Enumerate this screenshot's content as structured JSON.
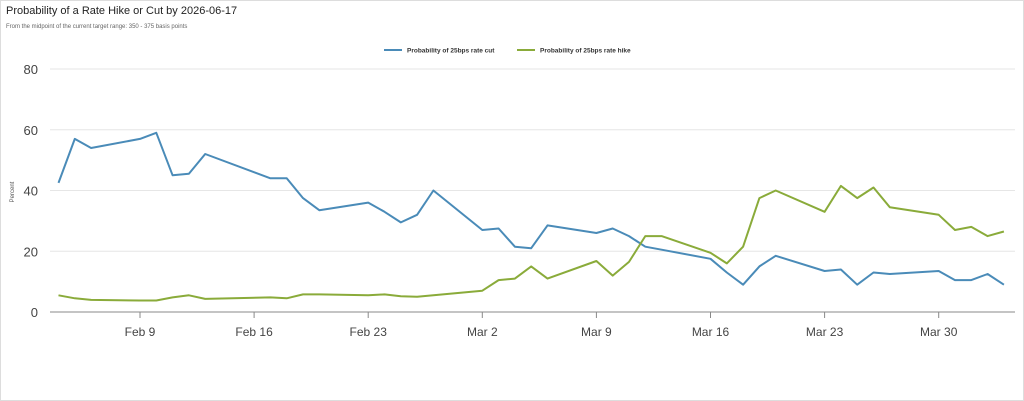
{
  "chart_data": {
    "type": "line",
    "title": "Probability of a Rate Hike or Cut by 2026-06-17",
    "subtitle": "From the midpoint of the current target range: 350 - 375 basis points",
    "xlabel": "",
    "ylabel": "Percent",
    "ylim": [
      0,
      80
    ],
    "yticks": [
      "0",
      "20",
      "40",
      "60",
      "80"
    ],
    "xticks": [
      "Feb 9",
      "Feb 16",
      "Feb 23",
      "Mar 2",
      "Mar 9",
      "Mar 16",
      "Mar 23",
      "Mar 30"
    ],
    "legend_position": "top-center",
    "grid": true,
    "x": [
      "Feb 4",
      "Feb 5",
      "Feb 6",
      "Feb 9",
      "Feb 10",
      "Feb 11",
      "Feb 12",
      "Feb 13",
      "Feb 17",
      "Feb 18",
      "Feb 19",
      "Feb 20",
      "Feb 23",
      "Feb 24",
      "Feb 25",
      "Feb 26",
      "Feb 27",
      "Mar 2",
      "Mar 3",
      "Mar 4",
      "Mar 5",
      "Mar 6",
      "Mar 9",
      "Mar 10",
      "Mar 11",
      "Mar 12",
      "Mar 13",
      "Mar 16",
      "Mar 17",
      "Mar 18",
      "Mar 19",
      "Mar 20",
      "Mar 23",
      "Mar 24",
      "Mar 25",
      "Mar 26",
      "Mar 27",
      "Mar 30",
      "Mar 31",
      "Apr 1",
      "Apr 2",
      "Apr 3"
    ],
    "x_day_offset_from_feb9": [
      -5,
      -4,
      -3,
      0,
      1,
      2,
      3,
      4,
      8,
      9,
      10,
      11,
      14,
      15,
      16,
      17,
      18,
      21,
      22,
      23,
      24,
      25,
      28,
      29,
      30,
      31,
      32,
      35,
      36,
      37,
      38,
      39,
      42,
      43,
      44,
      45,
      46,
      49,
      50,
      51,
      52,
      53
    ],
    "series": [
      {
        "name": "Probability of 25bps rate cut",
        "color": "#4a8bb8",
        "values": [
          42.5,
          57,
          54,
          57,
          59,
          45,
          45.5,
          52,
          44,
          44,
          37.5,
          33.5,
          36,
          33,
          29.5,
          32,
          40,
          27,
          27.5,
          21.5,
          21,
          28.5,
          26,
          27.5,
          25,
          21.5,
          20.5,
          17.5,
          13,
          9,
          15,
          18.5,
          13.5,
          14,
          9,
          13,
          12.5,
          13.5,
          10.5,
          10.5,
          12.5,
          9
        ]
      },
      {
        "name": "Probability of 25bps rate hike",
        "color": "#8aab3a",
        "values": [
          5.5,
          4.5,
          4,
          3.8,
          3.8,
          4.8,
          5.5,
          4.3,
          4.8,
          4.5,
          5.8,
          5.8,
          5.5,
          5.8,
          5.2,
          5,
          5.5,
          7,
          10.5,
          11,
          15,
          11,
          16.8,
          12,
          16.5,
          25,
          25,
          19.5,
          16,
          21.5,
          37.5,
          40,
          33,
          41.5,
          37.5,
          41,
          34.5,
          32,
          27,
          28,
          25,
          26.5
        ]
      }
    ]
  }
}
